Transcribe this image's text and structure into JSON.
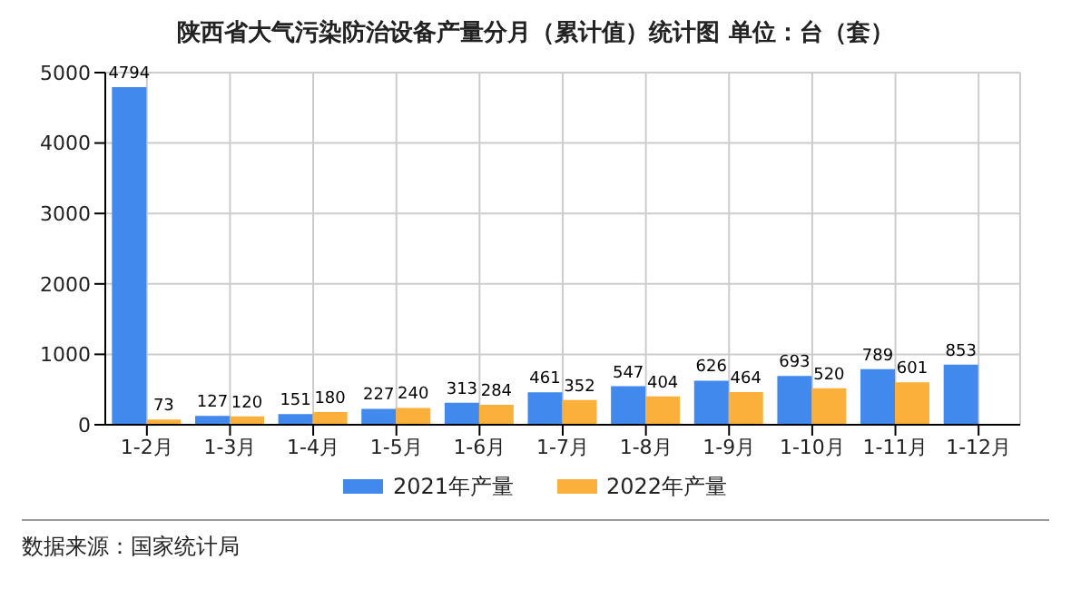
{
  "chart_data": {
    "type": "bar",
    "title": "陕西省大气污染防治设备产量分月（累计值）统计图  单位：台（套）",
    "categories": [
      "1-2月",
      "1-3月",
      "1-4月",
      "1-5月",
      "1-6月",
      "1-7月",
      "1-8月",
      "1-9月",
      "1-10月",
      "1-11月",
      "1-12月"
    ],
    "series": [
      {
        "name": "2021年产量",
        "color": "#4189ec",
        "values": [
          4794,
          127,
          151,
          227,
          313,
          461,
          547,
          626,
          693,
          789,
          853
        ]
      },
      {
        "name": "2022年产量",
        "color": "#fbb03c",
        "values": [
          73,
          120,
          180,
          240,
          284,
          352,
          404,
          464,
          520,
          601,
          null
        ]
      }
    ],
    "ylim": [
      0,
      5000
    ],
    "yticks": [
      0,
      1000,
      2000,
      3000,
      4000,
      5000
    ],
    "grid": true,
    "legend": "bottom",
    "data_labels": true,
    "annotations": [
      "数据来源：国家统计局"
    ]
  }
}
